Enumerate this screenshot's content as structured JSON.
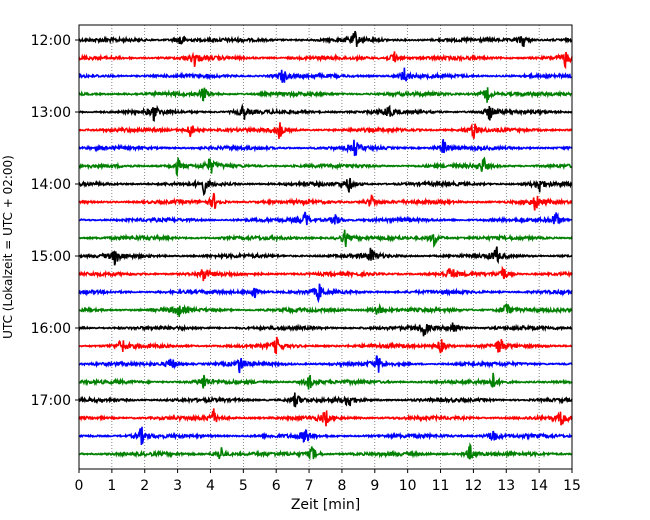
{
  "chart_data": {
    "type": "line",
    "title": "",
    "xlabel": "Zeit  [min]",
    "ylabel": "UTC (Lokalzeit = UTC + 02:00)",
    "xlim": [
      0,
      15
    ],
    "x_ticks": [
      "0",
      "1",
      "2",
      "3",
      "4",
      "5",
      "6",
      "7",
      "8",
      "9",
      "10",
      "11",
      "12",
      "13",
      "14",
      "15"
    ],
    "y_ticks": [
      "12:00",
      "13:00",
      "14:00",
      "15:00",
      "16:00",
      "17:00"
    ],
    "row_minutes": 15,
    "start_time": "12:00",
    "grid": "vertical dotted at each minute",
    "colors": [
      "#000000",
      "#ff0000",
      "#0000ff",
      "#008000"
    ],
    "rows": [
      {
        "time": "12:00",
        "events": [
          3.1,
          8.4,
          13.5
        ]
      },
      {
        "time": "12:15",
        "events": [
          3.5,
          9.6,
          14.8
        ]
      },
      {
        "time": "12:30",
        "events": [
          6.2,
          9.9
        ]
      },
      {
        "time": "12:45",
        "events": [
          3.8,
          12.4
        ]
      },
      {
        "time": "13:00",
        "events": [
          2.3,
          5.0,
          9.4,
          12.5
        ]
      },
      {
        "time": "13:15",
        "events": [
          3.4,
          6.1,
          12.0
        ]
      },
      {
        "time": "13:30",
        "events": [
          8.4,
          11.1
        ]
      },
      {
        "time": "13:45",
        "events": [
          3.0,
          4.0,
          12.3
        ]
      },
      {
        "time": "14:00",
        "events": [
          3.8,
          8.2,
          14.0
        ]
      },
      {
        "time": "14:15",
        "events": [
          4.1,
          8.9,
          13.9
        ]
      },
      {
        "time": "14:30",
        "events": [
          6.9,
          7.8,
          14.5
        ]
      },
      {
        "time": "14:45",
        "events": [
          8.1,
          10.8
        ]
      },
      {
        "time": "15:00",
        "events": [
          1.1,
          8.9,
          12.7
        ]
      },
      {
        "time": "15:15",
        "events": [
          3.8,
          11.3,
          12.9
        ]
      },
      {
        "time": "15:30",
        "events": [
          5.3,
          7.3
        ]
      },
      {
        "time": "15:45",
        "events": [
          3.0,
          9.1,
          13.0
        ]
      },
      {
        "time": "16:00",
        "events": [
          10.5,
          11.4
        ]
      },
      {
        "time": "16:15",
        "events": [
          1.3,
          6.0,
          11.0,
          12.8
        ]
      },
      {
        "time": "16:30",
        "events": [
          2.8,
          4.9,
          9.1
        ]
      },
      {
        "time": "16:45",
        "events": [
          3.8,
          7.0,
          12.6
        ]
      },
      {
        "time": "17:00",
        "events": [
          6.6,
          8.2
        ]
      },
      {
        "time": "17:15",
        "events": [
          4.1,
          7.5,
          14.7
        ]
      },
      {
        "time": "17:30",
        "events": [
          1.9,
          6.9,
          12.6
        ]
      },
      {
        "time": "17:45",
        "events": [
          4.3,
          7.1,
          11.9
        ]
      }
    ]
  }
}
